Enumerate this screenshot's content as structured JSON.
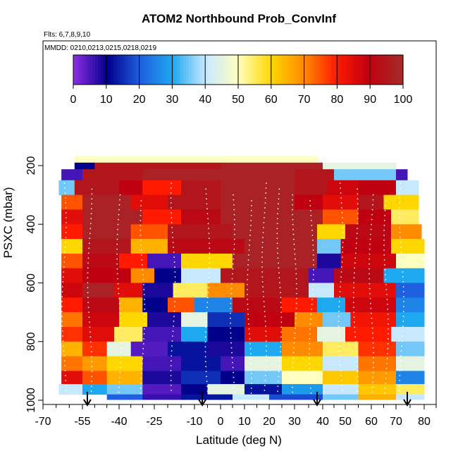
{
  "chart_data": {
    "type": "heatmap",
    "title": "ATOM2 Northbound Prob_ConvInf",
    "subtitle": "Flts: 6,7,8,9,10",
    "annotation": "MMDD: 0210,0213,0215,0218,0219",
    "xlabel": "Latitude (deg N)",
    "ylabel": "PSXC (mbar)",
    "xlim": [
      -70,
      85
    ],
    "ylim": [
      1000,
      170
    ],
    "x_ticks": [
      -70,
      -55,
      -40,
      -25,
      -10,
      0,
      10,
      20,
      30,
      40,
      50,
      60,
      70,
      80
    ],
    "x_ticks_minor": [
      -65,
      -60,
      -50,
      -45,
      -35,
      -30,
      -20,
      -15,
      -5,
      5,
      15,
      25,
      35,
      45,
      55,
      65,
      75,
      85
    ],
    "y_ticks": [
      200,
      400,
      600,
      800,
      1000
    ],
    "colorbar": {
      "range": [
        0,
        100
      ],
      "ticks": [
        0,
        10,
        20,
        30,
        40,
        50,
        60,
        70,
        80,
        90,
        100
      ],
      "colors": [
        "#8a2be2",
        "#00008b",
        "#1e60e0",
        "#1ea8f0",
        "#c8e8ff",
        "#ffffc0",
        "#ffd700",
        "#ff8c00",
        "#ff1a00",
        "#c00010",
        "#a52a2a"
      ]
    },
    "flight_marker_latitudes": [
      -53,
      -7,
      38,
      74
    ],
    "rows": [
      {
        "p": 180,
        "cells": [
          [
            -58,
            38,
            50
          ]
        ]
      },
      {
        "p": 200,
        "cells": [
          [
            -58,
            -50,
            10
          ],
          [
            -50,
            0,
            95
          ],
          [
            0,
            40,
            98
          ],
          [
            40,
            70,
            45
          ]
        ]
      },
      {
        "p": 225,
        "cells": [
          [
            -63,
            -55,
            5
          ],
          [
            -55,
            -30,
            95
          ],
          [
            -30,
            0,
            98
          ],
          [
            0,
            30,
            98
          ],
          [
            30,
            45,
            95
          ],
          [
            45,
            70,
            35
          ],
          [
            70,
            74,
            5
          ]
        ]
      },
      {
        "p": 275,
        "cells": [
          [
            -64,
            -58,
            35
          ],
          [
            -58,
            -40,
            95
          ],
          [
            -40,
            -30,
            90
          ],
          [
            -30,
            -15,
            80
          ],
          [
            -15,
            0,
            95
          ],
          [
            0,
            30,
            98
          ],
          [
            30,
            42,
            95
          ],
          [
            42,
            55,
            88
          ],
          [
            55,
            70,
            90
          ],
          [
            70,
            78,
            40
          ]
        ]
      },
      {
        "p": 325,
        "cells": [
          [
            -63,
            -55,
            75
          ],
          [
            -55,
            -35,
            98
          ],
          [
            -35,
            -20,
            85
          ],
          [
            -20,
            0,
            95
          ],
          [
            0,
            30,
            98
          ],
          [
            30,
            40,
            90
          ],
          [
            40,
            55,
            85
          ],
          [
            55,
            65,
            95
          ],
          [
            65,
            78,
            60
          ]
        ]
      },
      {
        "p": 375,
        "cells": [
          [
            -63,
            -55,
            85
          ],
          [
            -55,
            -30,
            98
          ],
          [
            -30,
            -15,
            80
          ],
          [
            -15,
            0,
            92
          ],
          [
            0,
            40,
            98
          ],
          [
            40,
            55,
            75
          ],
          [
            55,
            68,
            90
          ],
          [
            68,
            78,
            55
          ]
        ]
      },
      {
        "p": 425,
        "cells": [
          [
            -63,
            -55,
            80
          ],
          [
            -55,
            -35,
            98
          ],
          [
            -35,
            -20,
            75
          ],
          [
            -20,
            5,
            95
          ],
          [
            5,
            38,
            98
          ],
          [
            38,
            50,
            60
          ],
          [
            50,
            68,
            92
          ],
          [
            68,
            79,
            70
          ]
        ]
      },
      {
        "p": 475,
        "cells": [
          [
            -63,
            -55,
            60
          ],
          [
            -55,
            -35,
            95
          ],
          [
            -35,
            -20,
            65
          ],
          [
            -20,
            10,
            92
          ],
          [
            10,
            38,
            98
          ],
          [
            38,
            48,
            35
          ],
          [
            48,
            68,
            90
          ],
          [
            68,
            80,
            60
          ]
        ]
      },
      {
        "p": 525,
        "cells": [
          [
            -63,
            -55,
            75
          ],
          [
            -55,
            -40,
            92
          ],
          [
            -40,
            -28,
            80
          ],
          [
            -28,
            -15,
            5
          ],
          [
            -15,
            5,
            60
          ],
          [
            5,
            38,
            98
          ],
          [
            38,
            48,
            8
          ],
          [
            48,
            70,
            88
          ],
          [
            70,
            80,
            50
          ]
        ]
      },
      {
        "p": 575,
        "cells": [
          [
            -63,
            -55,
            85
          ],
          [
            -55,
            -35,
            90
          ],
          [
            -35,
            -25,
            70
          ],
          [
            -25,
            -15,
            10
          ],
          [
            -15,
            0,
            40
          ],
          [
            0,
            35,
            95
          ],
          [
            35,
            45,
            5
          ],
          [
            45,
            65,
            92
          ],
          [
            65,
            80,
            30
          ]
        ]
      },
      {
        "p": 625,
        "cells": [
          [
            -63,
            -55,
            88
          ],
          [
            -55,
            -42,
            98
          ],
          [
            -42,
            -30,
            85
          ],
          [
            -30,
            -18,
            8
          ],
          [
            -18,
            -5,
            55
          ],
          [
            -5,
            10,
            70
          ],
          [
            10,
            35,
            95
          ],
          [
            35,
            45,
            40
          ],
          [
            45,
            70,
            85
          ],
          [
            70,
            80,
            20
          ]
        ]
      },
      {
        "p": 675,
        "cells": [
          [
            -63,
            -55,
            80
          ],
          [
            -55,
            -40,
            92
          ],
          [
            -40,
            -30,
            65
          ],
          [
            -30,
            -20,
            10
          ],
          [
            -20,
            -10,
            75
          ],
          [
            -10,
            5,
            25
          ],
          [
            5,
            25,
            92
          ],
          [
            25,
            38,
            80
          ],
          [
            38,
            50,
            30
          ],
          [
            50,
            70,
            88
          ],
          [
            70,
            80,
            25
          ]
        ]
      },
      {
        "p": 725,
        "cells": [
          [
            -63,
            -55,
            72
          ],
          [
            -55,
            -40,
            88
          ],
          [
            -40,
            -28,
            60
          ],
          [
            -28,
            -15,
            8
          ],
          [
            -15,
            -5,
            45
          ],
          [
            -5,
            10,
            15
          ],
          [
            10,
            30,
            90
          ],
          [
            30,
            40,
            70
          ],
          [
            40,
            52,
            35
          ],
          [
            52,
            70,
            82
          ],
          [
            70,
            80,
            30
          ]
        ]
      },
      {
        "p": 775,
        "cells": [
          [
            -63,
            -55,
            78
          ],
          [
            -55,
            -42,
            85
          ],
          [
            -42,
            -30,
            55
          ],
          [
            -30,
            -15,
            5
          ],
          [
            -15,
            -5,
            30
          ],
          [
            -5,
            10,
            10
          ],
          [
            10,
            25,
            85
          ],
          [
            25,
            38,
            72
          ],
          [
            38,
            50,
            45
          ],
          [
            50,
            68,
            80
          ],
          [
            68,
            80,
            40
          ]
        ]
      },
      {
        "p": 825,
        "cells": [
          [
            -63,
            -55,
            65
          ],
          [
            -55,
            -45,
            78
          ],
          [
            -45,
            -35,
            45
          ],
          [
            -35,
            -20,
            4
          ],
          [
            -20,
            -5,
            12
          ],
          [
            -5,
            10,
            8
          ],
          [
            10,
            25,
            30
          ],
          [
            25,
            40,
            70
          ],
          [
            40,
            55,
            55
          ],
          [
            55,
            70,
            78
          ],
          [
            70,
            80,
            35
          ]
        ]
      },
      {
        "p": 875,
        "cells": [
          [
            -63,
            -55,
            72
          ],
          [
            -55,
            -45,
            68
          ],
          [
            -45,
            -30,
            60
          ],
          [
            -30,
            -15,
            5
          ],
          [
            -15,
            0,
            12
          ],
          [
            0,
            10,
            5
          ],
          [
            10,
            25,
            45
          ],
          [
            25,
            40,
            60
          ],
          [
            40,
            55,
            40
          ],
          [
            55,
            70,
            72
          ],
          [
            70,
            80,
            45
          ]
        ]
      },
      {
        "p": 925,
        "cells": [
          [
            -63,
            -55,
            85
          ],
          [
            -55,
            -45,
            75
          ],
          [
            -45,
            -30,
            65
          ],
          [
            -30,
            -15,
            8
          ],
          [
            -15,
            0,
            15
          ],
          [
            0,
            10,
            10
          ],
          [
            10,
            25,
            35
          ],
          [
            25,
            40,
            50
          ],
          [
            40,
            55,
            62
          ],
          [
            55,
            70,
            68
          ],
          [
            70,
            80,
            25
          ]
        ]
      },
      {
        "p": 965,
        "cells": [
          [
            -64,
            -55,
            40
          ],
          [
            -55,
            -45,
            30
          ],
          [
            -45,
            -30,
            35
          ],
          [
            -30,
            -15,
            4
          ],
          [
            -15,
            -5,
            10
          ],
          [
            -5,
            10,
            45
          ],
          [
            10,
            25,
            12
          ],
          [
            25,
            40,
            28
          ],
          [
            40,
            55,
            40
          ],
          [
            55,
            70,
            62
          ],
          [
            70,
            80,
            55
          ]
        ]
      },
      {
        "p": 995,
        "cells": [
          [
            -45,
            -30,
            20
          ],
          [
            -30,
            -15,
            6
          ],
          [
            -15,
            5,
            12
          ],
          [
            5,
            20,
            40
          ],
          [
            20,
            40,
            18
          ],
          [
            40,
            55,
            35
          ],
          [
            55,
            70,
            65
          ],
          [
            70,
            80,
            40
          ]
        ]
      }
    ]
  }
}
